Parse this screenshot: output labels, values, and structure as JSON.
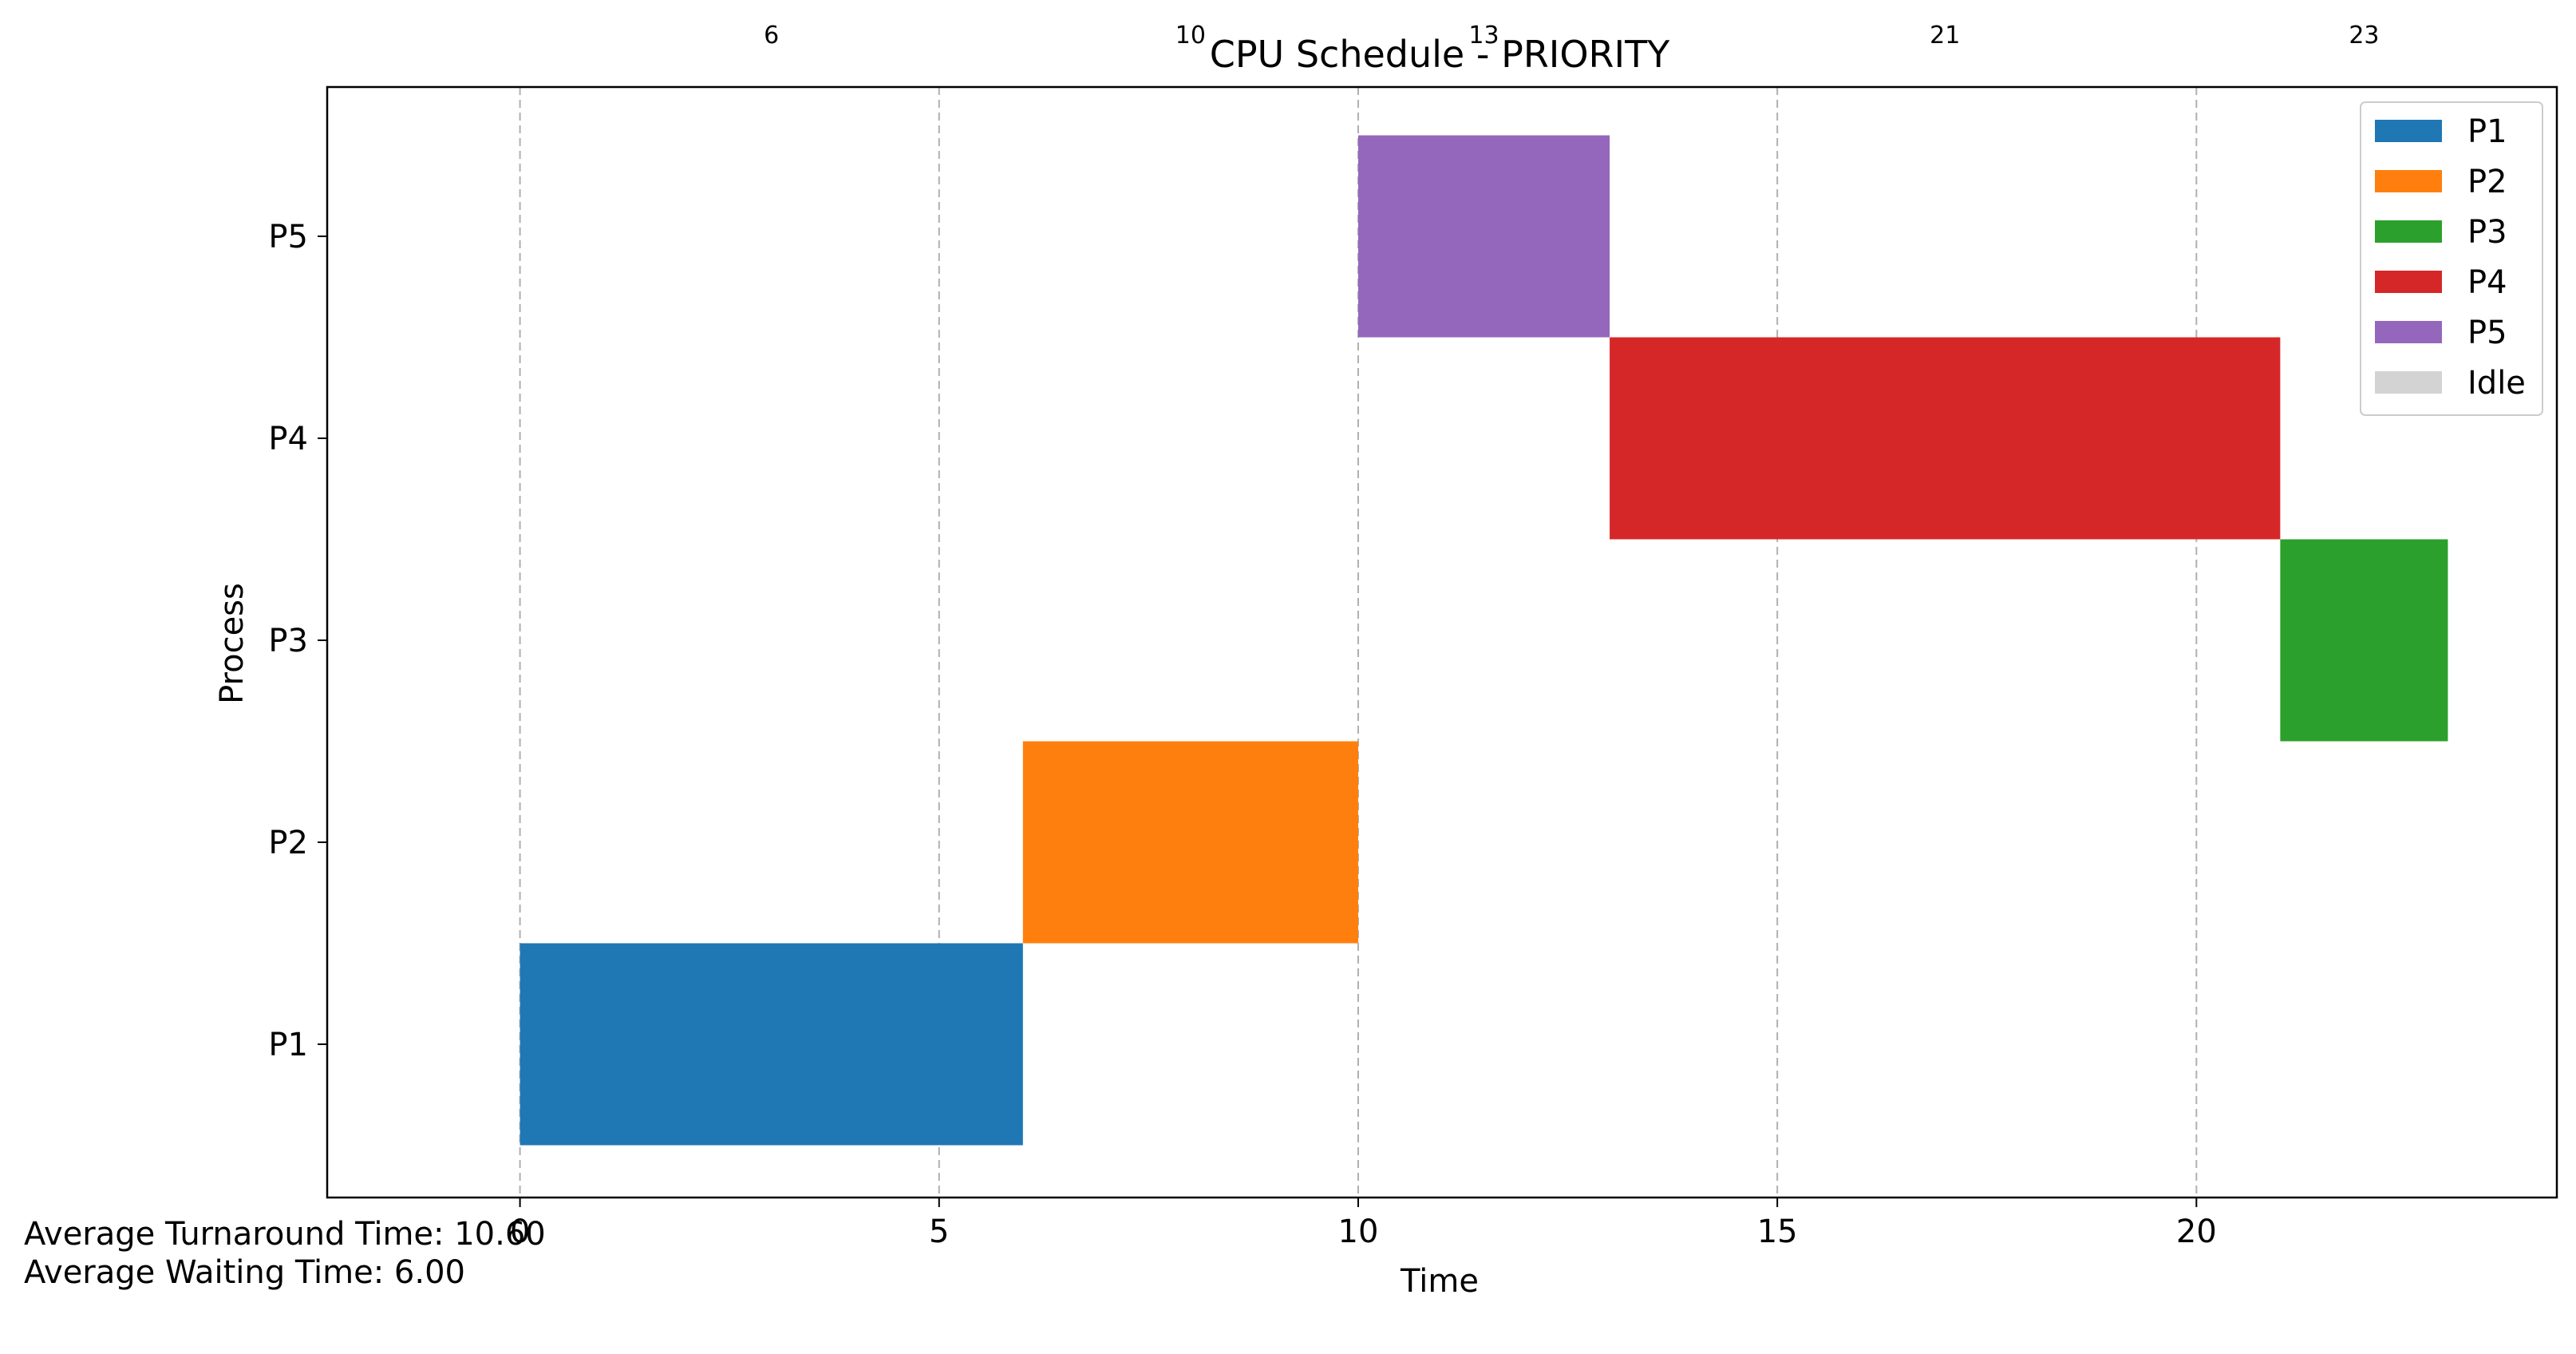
{
  "chart_data": {
    "type": "gantt",
    "title": "CPU Schedule - PRIORITY",
    "xlabel": "Time",
    "ylabel": "Process",
    "xlim": [
      -2.3,
      24.3
    ],
    "x_ticks": [
      0,
      5,
      10,
      15,
      20
    ],
    "categories": [
      "P1",
      "P2",
      "P3",
      "P4",
      "P5"
    ],
    "grid": "x-dashed",
    "legend_placement": "top-right",
    "series": [
      {
        "name": "P1",
        "color": "#1f77b4"
      },
      {
        "name": "P2",
        "color": "#ff7f0e"
      },
      {
        "name": "P3",
        "color": "#2ca02c"
      },
      {
        "name": "P4",
        "color": "#d62728"
      },
      {
        "name": "P5",
        "color": "#9467bd"
      },
      {
        "name": "Idle",
        "color": "#d3d3d3"
      }
    ],
    "segments": [
      {
        "process": "P1",
        "start": 0,
        "end": 6
      },
      {
        "process": "P2",
        "start": 6,
        "end": 10
      },
      {
        "process": "P5",
        "start": 10,
        "end": 13
      },
      {
        "process": "P4",
        "start": 13,
        "end": 21
      },
      {
        "process": "P3",
        "start": 21,
        "end": 23
      }
    ],
    "top_annotations": [
      6,
      10,
      13,
      21,
      23
    ]
  },
  "stats": {
    "turnaround": "Average Turnaround Time: 10.60",
    "waiting": "Average Waiting Time: 6.00"
  }
}
